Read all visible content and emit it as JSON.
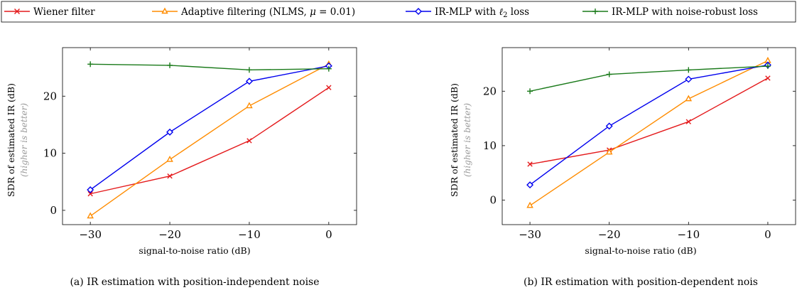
{
  "legend": [
    {
      "name": "Wiener filter",
      "color": "#e41a1c",
      "marker": "x"
    },
    {
      "name": "Adaptive filtering (NLMS, μ = 0.01)",
      "color": "#ff8c00",
      "marker": "triangle"
    },
    {
      "name": "IR-MLP with ℓ₂ loss",
      "color": "#0000ee",
      "marker": "diamond"
    },
    {
      "name": "IR-MLP with noise-robust loss",
      "color": "#1a7a1a",
      "marker": "plus"
    }
  ],
  "chart_data": [
    {
      "type": "line",
      "caption": "(a) IR estimation with position-independent noise",
      "xlabel": "signal-to-noise ratio (dB)",
      "ylabel": "SDR of estimated IR (dB)",
      "ylabel_note": "(higher is better)",
      "x": [
        -30,
        -20,
        -10,
        0
      ],
      "xticks": [
        -30,
        -20,
        -10,
        0
      ],
      "xtick_labels": [
        "−30",
        "−20",
        "−10",
        "0"
      ],
      "yticks": [
        0,
        10,
        20
      ],
      "ytick_labels": [
        "0",
        "10",
        "20"
      ],
      "xlim": [
        -33.5,
        3.5
      ],
      "ylim": [
        -2.5,
        28.5
      ],
      "grid": false,
      "series": [
        {
          "name": "Wiener filter",
          "values": [
            2.9,
            6.0,
            12.2,
            21.5
          ]
        },
        {
          "name": "Adaptive filtering (NLMS, μ = 0.01)",
          "values": [
            -1.0,
            8.9,
            18.3,
            25.6
          ]
        },
        {
          "name": "IR-MLP with ℓ₂ loss",
          "values": [
            3.6,
            13.7,
            22.6,
            25.3
          ]
        },
        {
          "name": "IR-MLP with noise-robust loss",
          "values": [
            25.6,
            25.4,
            24.6,
            24.8
          ]
        }
      ]
    },
    {
      "type": "line",
      "caption": "(b) IR estimation with position-dependent nois",
      "xlabel": "signal-to-noise ratio (dB)",
      "ylabel": "SDR of estimated IR (dB)",
      "ylabel_note": "(higher is better)",
      "x": [
        -30,
        -20,
        -10,
        0
      ],
      "xticks": [
        -30,
        -20,
        -10,
        0
      ],
      "xtick_labels": [
        "−30",
        "−20",
        "−10",
        "0"
      ],
      "yticks": [
        0,
        10,
        20
      ],
      "ytick_labels": [
        "0",
        "10",
        "20"
      ],
      "xlim": [
        -33.5,
        3.5
      ],
      "ylim": [
        -4.5,
        28.0
      ],
      "grid": false,
      "series": [
        {
          "name": "Wiener filter",
          "values": [
            6.6,
            9.2,
            14.4,
            22.4
          ]
        },
        {
          "name": "Adaptive filtering (NLMS, μ = 0.01)",
          "values": [
            -1.0,
            8.8,
            18.6,
            25.6
          ]
        },
        {
          "name": "IR-MLP with ℓ₂ loss",
          "values": [
            2.8,
            13.6,
            22.2,
            24.8
          ]
        },
        {
          "name": "IR-MLP with noise-robust loss",
          "values": [
            20.0,
            23.1,
            23.9,
            24.6
          ]
        }
      ]
    }
  ]
}
